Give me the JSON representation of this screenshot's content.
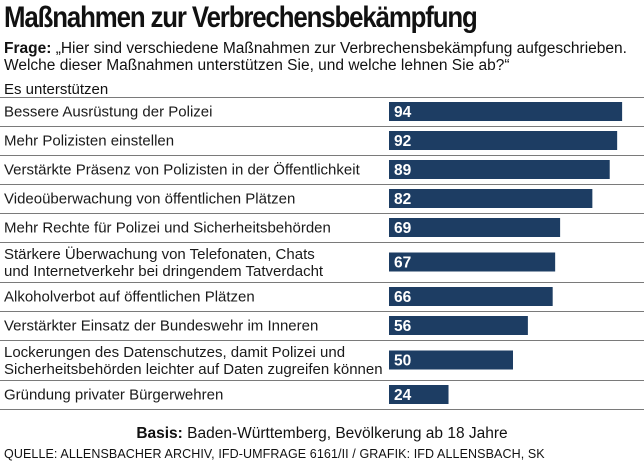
{
  "header": {
    "title": "Maßnahmen zur Verbrechensbekämpfung",
    "question_label": "Frage:",
    "question_text": "„Hier sind verschiedene Maßnahmen zur Verbrechensbekämpfung aufgeschrieben. Welche dieser Maßnahmen unterstützen Sie, und welche lehnen Sie ab?“",
    "subhead": "Es unterstützen"
  },
  "chart_data": {
    "type": "bar",
    "orientation": "horizontal",
    "categories": [
      [
        "Bessere Ausrüstung der Polizei"
      ],
      [
        "Mehr Polizisten einstellen"
      ],
      [
        "Verstärkte Präsenz von Polizisten in der Öffentlichkeit"
      ],
      [
        "Videoüberwachung von öffentlichen Plätzen"
      ],
      [
        "Mehr Rechte für Polizei und Sicherheitsbehörden"
      ],
      [
        "Stärkere Überwachung von Telefonaten, Chats",
        "und Internetverkehr bei dringendem Tatverdacht"
      ],
      [
        "Alkoholverbot auf öffentlichen Plätzen"
      ],
      [
        "Verstärkter Einsatz der Bundeswehr im Inneren"
      ],
      [
        "Lockerungen des Datenschutzes, damit Polizei und",
        "Sicherheitsbehörden leichter auf Daten zugreifen können"
      ],
      [
        "Gründung privater Bürgerwehren"
      ]
    ],
    "values": [
      94,
      92,
      89,
      82,
      69,
      67,
      66,
      56,
      50,
      24
    ],
    "unit": "%",
    "xlim": [
      0,
      100
    ],
    "bar_color": "#1d3d63",
    "label_color": "#ffffff"
  },
  "footer": {
    "basis_label": "Basis:",
    "basis_text": "Baden-Württemberg, Bevölkerung ab 18 Jahre",
    "source": "QUELLE: ALLENSBACHER ARCHIV, IFD-UMFRAGE 6161/II  /  GRAFIK: IFD ALLENSBACH, SK"
  }
}
